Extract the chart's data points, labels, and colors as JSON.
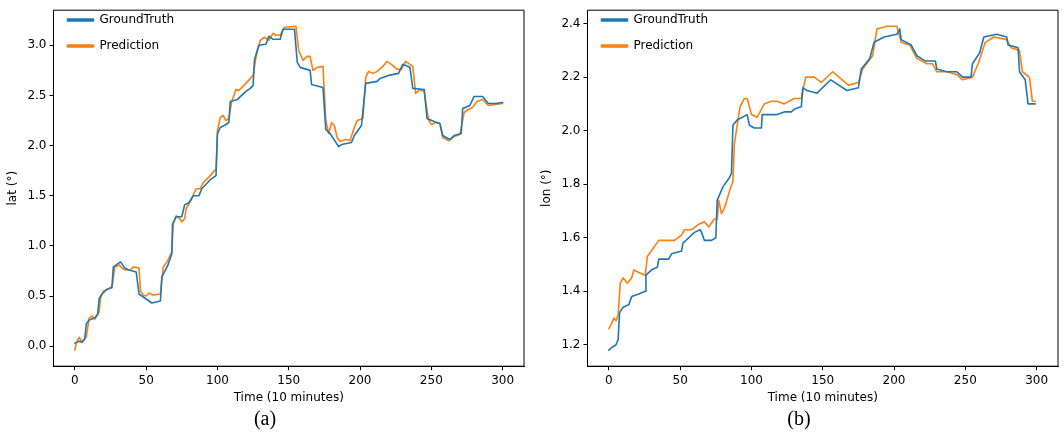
{
  "chart_data": [
    {
      "type": "line",
      "xlabel": "Time (10 minutes)",
      "ylabel": "lat (°)",
      "xlim": [
        -15,
        315
      ],
      "xticks": [
        0,
        50,
        100,
        150,
        200,
        250,
        300
      ],
      "ylim": [
        -0.2,
        3.35
      ],
      "yticks": [
        {
          "value": 0,
          "label": "0.0"
        },
        {
          "value": 0.5,
          "label": "0.5"
        },
        {
          "value": 1,
          "label": "1.0"
        },
        {
          "value": 1.5,
          "label": "1.5"
        },
        {
          "value": 2,
          "label": "2.0"
        },
        {
          "value": 2.5,
          "label": "2.5"
        },
        {
          "value": 3,
          "label": "3.0"
        }
      ],
      "grid": false,
      "legend": "top left",
      "marker": "none",
      "line_style": "solid",
      "annotations": [
        "(a)"
      ],
      "series": [
        {
          "name": "GroundTruth",
          "color": "#1f77b4",
          "x": [
            0,
            3,
            5,
            7,
            8,
            10,
            14,
            16,
            17,
            19,
            22,
            26,
            27,
            30,
            32,
            35,
            38,
            43,
            45,
            50,
            54,
            60,
            61,
            65,
            68,
            68.5,
            71,
            75,
            77,
            80,
            83,
            87,
            89,
            95,
            99,
            100,
            102,
            106,
            108,
            109,
            114,
            117,
            120,
            123,
            125,
            126,
            129,
            134,
            136,
            139,
            144,
            146,
            154,
            156,
            158,
            165,
            166,
            174,
            176,
            179,
            185,
            187,
            194,
            196,
            201,
            204,
            212,
            214,
            220,
            227,
            230,
            235,
            237,
            245,
            247,
            252,
            256,
            258,
            263,
            266,
            271,
            272,
            277,
            280,
            286,
            290,
            295,
            300
          ],
          "values": [
            0.03,
            0.05,
            0.04,
            0.08,
            0.22,
            0.26,
            0.28,
            0.32,
            0.47,
            0.52,
            0.56,
            0.59,
            0.79,
            0.82,
            0.84,
            0.78,
            0.76,
            0.74,
            0.52,
            0.47,
            0.43,
            0.45,
            0.69,
            0.8,
            0.92,
            1.22,
            1.29,
            1.29,
            1.41,
            1.43,
            1.5,
            1.5,
            1.57,
            1.66,
            1.7,
            2.12,
            2.18,
            2.21,
            2.23,
            2.44,
            2.46,
            2.5,
            2.54,
            2.57,
            2.6,
            2.86,
            3.0,
            3.01,
            3.09,
            3.06,
            3.06,
            3.16,
            3.16,
            2.83,
            2.78,
            2.75,
            2.61,
            2.58,
            2.16,
            2.12,
            1.99,
            2.01,
            2.03,
            2.1,
            2.2,
            2.62,
            2.64,
            2.67,
            2.7,
            2.72,
            2.81,
            2.78,
            2.57,
            2.56,
            2.27,
            2.24,
            2.22,
            2.1,
            2.06,
            2.1,
            2.12,
            2.37,
            2.4,
            2.49,
            2.49,
            2.42,
            2.42,
            2.43
          ]
        },
        {
          "name": "Prediction",
          "color": "#ff7f0e",
          "x": [
            0,
            1,
            3,
            5,
            7,
            8,
            10,
            12,
            14,
            17,
            18,
            20,
            23,
            26,
            28,
            31,
            33,
            35,
            39,
            41,
            45,
            46,
            48,
            50,
            52,
            55,
            60,
            62,
            65,
            68,
            69,
            71,
            73,
            75,
            77,
            78,
            82,
            85,
            88,
            90,
            95,
            99,
            100,
            102,
            104,
            106,
            108,
            110,
            113,
            115,
            120,
            125,
            127,
            130,
            133,
            136,
            139,
            141,
            144,
            147,
            155,
            157,
            160,
            163,
            165,
            167,
            170,
            174,
            176,
            178,
            180,
            182,
            184,
            186,
            190,
            193,
            196,
            198,
            202,
            204,
            206,
            209,
            212,
            216,
            219,
            222,
            226,
            229,
            232,
            237,
            239,
            242,
            245,
            248,
            250,
            253,
            256,
            258,
            262,
            266,
            270,
            273,
            276,
            279,
            282,
            286,
            290,
            295,
            300
          ],
          "values": [
            -0.04,
            0.03,
            0.09,
            0.04,
            0.07,
            0.09,
            0.28,
            0.3,
            0.27,
            0.34,
            0.48,
            0.55,
            0.57,
            0.58,
            0.79,
            0.81,
            0.78,
            0.76,
            0.76,
            0.79,
            0.78,
            0.55,
            0.51,
            0.5,
            0.53,
            0.51,
            0.52,
            0.79,
            0.85,
            0.94,
            1.22,
            1.3,
            1.28,
            1.24,
            1.27,
            1.37,
            1.47,
            1.57,
            1.57,
            1.63,
            1.7,
            1.77,
            2.15,
            2.28,
            2.3,
            2.25,
            2.27,
            2.44,
            2.56,
            2.55,
            2.62,
            2.7,
            2.88,
            3.05,
            3.08,
            3.05,
            3.12,
            3.1,
            3.1,
            3.18,
            3.19,
            2.95,
            2.85,
            2.89,
            2.89,
            2.75,
            2.78,
            2.79,
            2.25,
            2.12,
            2.23,
            2.2,
            2.08,
            2.04,
            2.06,
            2.05,
            2.18,
            2.25,
            2.27,
            2.68,
            2.74,
            2.72,
            2.74,
            2.79,
            2.84,
            2.81,
            2.76,
            2.76,
            2.84,
            2.79,
            2.52,
            2.56,
            2.54,
            2.26,
            2.21,
            2.23,
            2.22,
            2.08,
            2.05,
            2.09,
            2.11,
            2.33,
            2.36,
            2.38,
            2.44,
            2.46,
            2.4,
            2.41,
            2.42
          ]
        }
      ]
    },
    {
      "type": "line",
      "xlabel": "Time (10 minutes)",
      "ylabel": "lon (°)",
      "xlim": [
        -15,
        315
      ],
      "xticks": [
        0,
        50,
        100,
        150,
        200,
        250,
        300
      ],
      "ylim": [
        1.12,
        2.45
      ],
      "yticks": [
        {
          "value": 1.2,
          "label": "1.2"
        },
        {
          "value": 1.4,
          "label": "1.4"
        },
        {
          "value": 1.6,
          "label": "1.6"
        },
        {
          "value": 1.8,
          "label": "1.8"
        },
        {
          "value": 2,
          "label": "2.0"
        },
        {
          "value": 2.2,
          "label": "2.2"
        },
        {
          "value": 2.4,
          "label": "2.4"
        }
      ],
      "grid": false,
      "legend": "top left",
      "marker": "none",
      "line_style": "solid",
      "annotations": [
        "(b)"
      ],
      "series": [
        {
          "name": "GroundTruth",
          "color": "#1f77b4",
          "x": [
            0,
            2,
            5,
            6.5,
            7.5,
            10,
            14,
            16,
            21,
            25.5,
            26,
            30,
            34,
            35,
            38,
            42,
            44,
            51,
            52,
            56,
            60,
            64,
            65,
            67,
            72,
            75,
            76,
            80,
            84,
            86,
            87,
            90,
            97,
            98.6,
            102,
            107,
            107.5,
            118,
            123,
            128,
            130,
            135,
            136,
            139,
            146,
            155.6,
            167,
            175,
            177,
            183,
            186,
            193,
            202,
            204,
            205,
            212,
            216,
            222,
            229,
            230,
            237,
            244,
            248,
            254,
            255,
            260,
            263,
            272,
            279,
            280,
            287,
            288,
            292,
            294,
            299
          ],
          "values": [
            1.18,
            1.19,
            1.2,
            1.22,
            1.32,
            1.34,
            1.35,
            1.38,
            1.39,
            1.4,
            1.46,
            1.48,
            1.49,
            1.52,
            1.52,
            1.52,
            1.54,
            1.55,
            1.58,
            1.6,
            1.62,
            1.63,
            1.62,
            1.59,
            1.59,
            1.6,
            1.74,
            1.79,
            1.82,
            1.84,
            2.02,
            2.04,
            2.06,
            2.02,
            2.01,
            2.01,
            2.06,
            2.06,
            2.07,
            2.07,
            2.08,
            2.09,
            2.16,
            2.15,
            2.14,
            2.19,
            2.15,
            2.16,
            2.23,
            2.27,
            2.33,
            2.35,
            2.36,
            2.38,
            2.34,
            2.32,
            2.28,
            2.26,
            2.26,
            2.23,
            2.22,
            2.22,
            2.2,
            2.2,
            2.25,
            2.29,
            2.35,
            2.36,
            2.35,
            2.32,
            2.31,
            2.22,
            2.19,
            2.1,
            2.1
          ]
        },
        {
          "name": "Prediction",
          "color": "#ff7f0e",
          "x": [
            0,
            2,
            3.5,
            5,
            6.5,
            8,
            10,
            13,
            16,
            17.5,
            21,
            25.5,
            27,
            31,
            35,
            39,
            46,
            51,
            53,
            58,
            63,
            67,
            70,
            74,
            76,
            77,
            79,
            81,
            85,
            87,
            88,
            92,
            95,
            97,
            100,
            104,
            109,
            114,
            118,
            123,
            130,
            135,
            138,
            144,
            149,
            157,
            168,
            175,
            178,
            185,
            188,
            195,
            202,
            205,
            211,
            216,
            223,
            227,
            230,
            237,
            244,
            248,
            255,
            259,
            264,
            270,
            279,
            282,
            288,
            290,
            295,
            297,
            299
          ],
          "values": [
            1.26,
            1.28,
            1.3,
            1.29,
            1.31,
            1.43,
            1.45,
            1.43,
            1.45,
            1.48,
            1.47,
            1.46,
            1.53,
            1.56,
            1.59,
            1.59,
            1.59,
            1.61,
            1.63,
            1.63,
            1.65,
            1.66,
            1.64,
            1.67,
            1.67,
            1.74,
            1.69,
            1.71,
            1.78,
            1.81,
            1.95,
            2.09,
            2.12,
            2.12,
            2.06,
            2.05,
            2.1,
            2.11,
            2.11,
            2.1,
            2.12,
            2.12,
            2.2,
            2.2,
            2.18,
            2.22,
            2.17,
            2.18,
            2.23,
            2.28,
            2.38,
            2.39,
            2.39,
            2.33,
            2.32,
            2.27,
            2.25,
            2.25,
            2.22,
            2.22,
            2.21,
            2.19,
            2.2,
            2.25,
            2.33,
            2.35,
            2.34,
            2.31,
            2.3,
            2.22,
            2.2,
            2.11,
            2.11
          ]
        }
      ]
    }
  ]
}
